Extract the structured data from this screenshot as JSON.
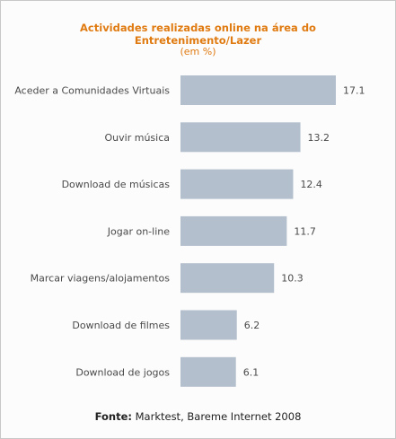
{
  "title_line1": "Actividades realizadas online na área do",
  "title_line2": "Entretenimento/Lazer",
  "subtitle": "(em %)",
  "source_label": "Fonte:",
  "source_text": "Marktest, Bareme Internet 2008",
  "colors": {
    "title": "#e07b12",
    "bar": "#b3bfcc",
    "text": "#4a4a4a"
  },
  "chart_data": {
    "type": "bar",
    "orientation": "horizontal",
    "title": "Actividades realizadas online na área do Entretenimento/Lazer",
    "subtitle": "(em %)",
    "categories": [
      "Aceder a Comunidades Virtuais",
      "Ouvir música",
      "Download de músicas",
      "Jogar on-line",
      "Marcar viagens/alojamentos",
      "Download de filmes",
      "Download de jogos"
    ],
    "values": [
      17.1,
      13.2,
      12.4,
      11.7,
      10.3,
      6.2,
      6.1
    ],
    "value_labels": [
      "17.1",
      "13.2",
      "12.4",
      "11.7",
      "10.3",
      "6.2",
      "6.1"
    ],
    "xlim": [
      0,
      17.1
    ],
    "grid": false,
    "legend": false
  }
}
